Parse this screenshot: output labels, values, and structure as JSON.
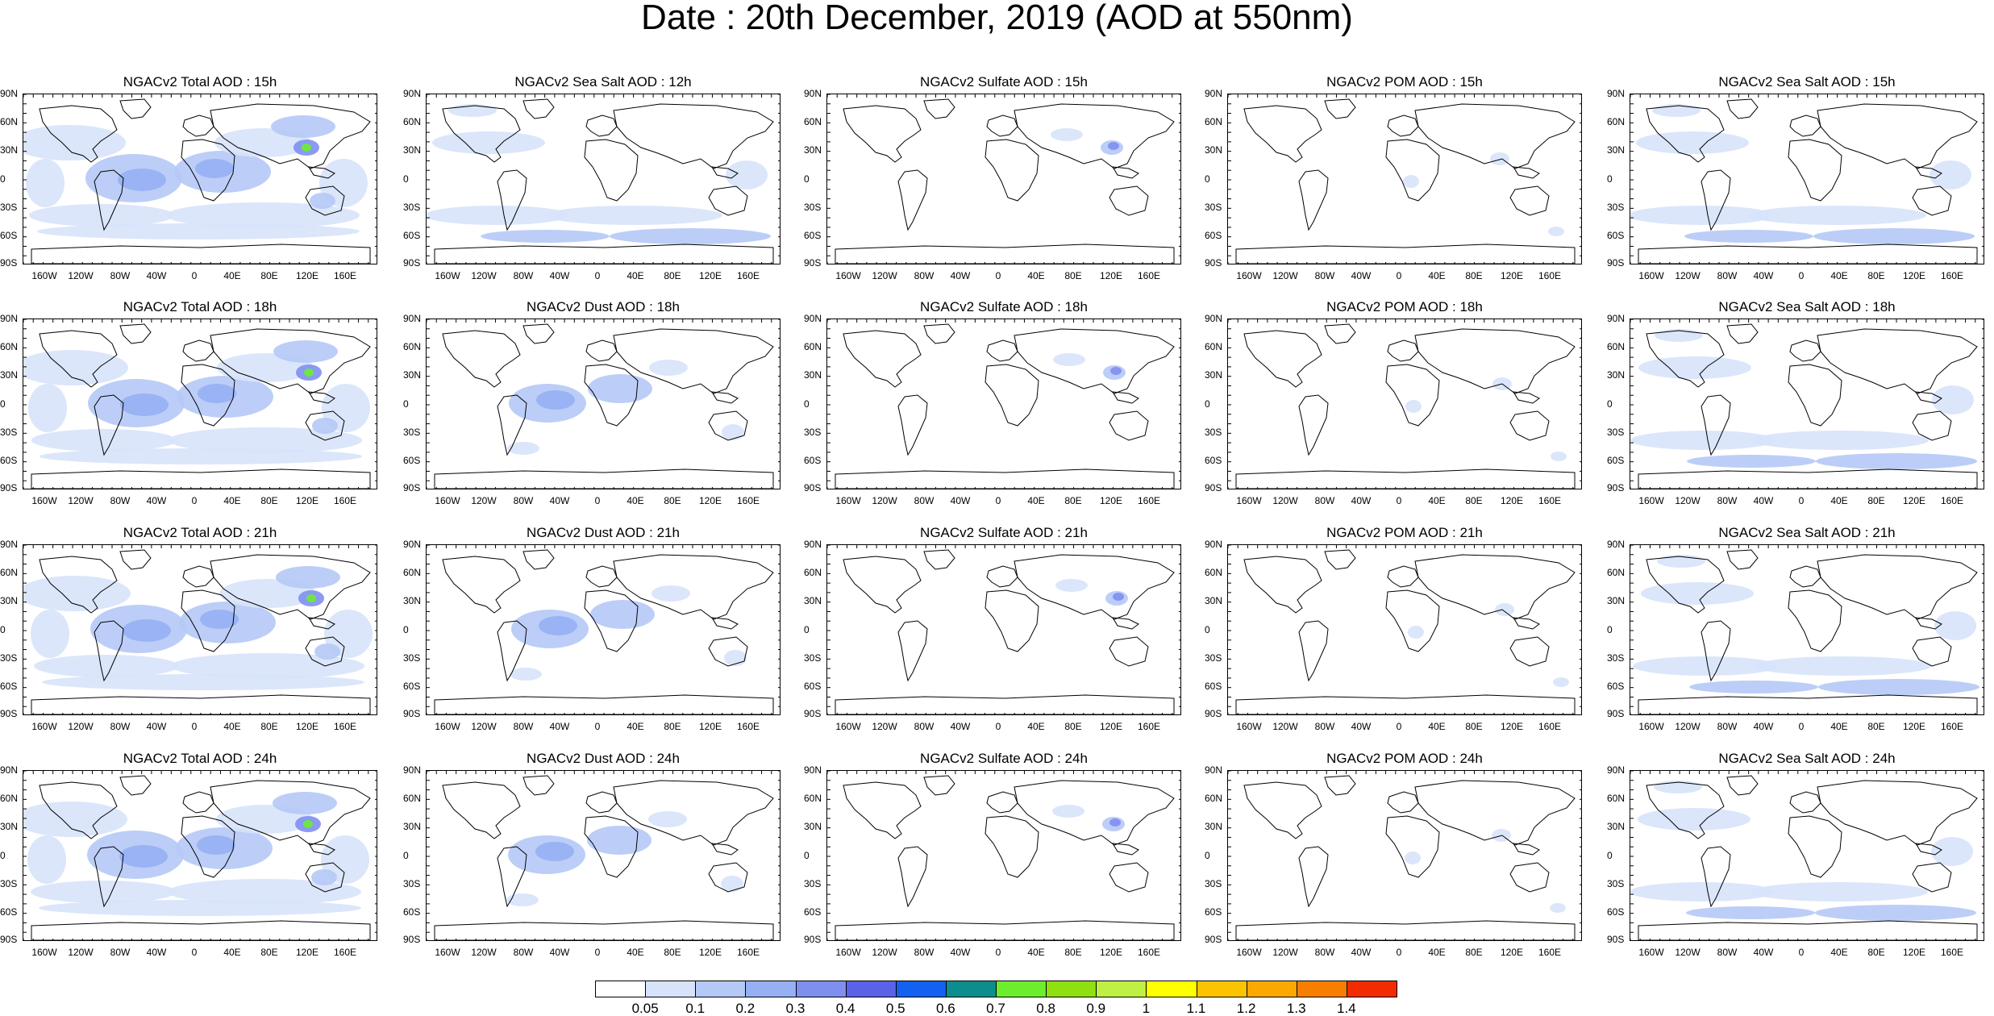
{
  "title": "Date : 20th December, 2019 (AOD at 550nm)",
  "lat_ticks": [
    "90N",
    "60N",
    "30N",
    "0",
    "30S",
    "60S",
    "90S"
  ],
  "lon_ticks": [
    "160W",
    "120W",
    "80W",
    "40W",
    "0",
    "40E",
    "80E",
    "120E",
    "160E"
  ],
  "panels": [
    [
      "NGACv2 Total AOD : 15h",
      "NGACv2 Sea Salt  AOD : 12h",
      "NGACv2 Sulfate AOD : 15h",
      "NGACv2 POM AOD : 15h",
      "NGACv2 Sea Salt AOD : 15h"
    ],
    [
      "NGACv2 Total AOD : 18h",
      "NGACv2 Dust AOD : 18h",
      "NGACv2 Sulfate AOD : 18h",
      "NGACv2 POM AOD : 18h",
      "NGACv2 Sea Salt AOD : 18h"
    ],
    [
      "NGACv2 Total AOD : 21h",
      "NGACv2 Dust AOD : 21h",
      "NGACv2 Sulfate AOD : 21h",
      "NGACv2 POM AOD : 21h",
      "NGACv2 Sea Salt AOD : 21h"
    ],
    [
      "NGACv2 Total AOD : 24h",
      "NGACv2 Dust AOD : 24h",
      "NGACv2 Sulfate AOD : 24h",
      "NGACv2 POM AOD : 24h",
      "NGACv2 Sea Salt  AOD : 24h"
    ]
  ],
  "colorbar": {
    "labels": [
      "0.05",
      "0.1",
      "0.2",
      "0.3",
      "0.4",
      "0.5",
      "0.6",
      "0.7",
      "0.8",
      "0.9",
      "1",
      "1.1",
      "1.2",
      "1.3",
      "1.4"
    ],
    "colors": [
      "#ffffff",
      "#d7e3fb",
      "#b5c9f6",
      "#96b0f3",
      "#7f8ff0",
      "#5a62e8",
      "#1261f0",
      "#0d8e8e",
      "#6cee2e",
      "#8ee011",
      "#bff044",
      "#ffff00",
      "#fcc400",
      "#fba800",
      "#f87e00",
      "#f22b00"
    ]
  }
}
